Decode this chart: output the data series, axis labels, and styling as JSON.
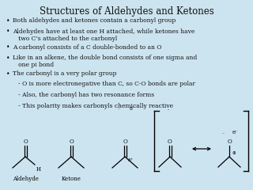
{
  "title": "Structures of Aldehydes and Ketones",
  "title_fontsize": 8.5,
  "background_color": "#cce4ef",
  "text_color": "#111111",
  "bullet_points": [
    "Both aldehydes and ketones contain a carbonyl group",
    "Aldehydes have at least one H attached, while ketones have\n   two C’s attached to the carbonyl",
    "A carbonyl consists of a C double-bonded to an O",
    "Like in an alkene, the double bond consists of one sigma and\n   one pi bond",
    "The carbonyl is a very polar group"
  ],
  "sub_points": [
    "   - O is more electronegative than C, so C-O bonds are polar",
    "   - Also, the carbonyl has two resonance forms",
    "   - This polarity makes carbonyls chemically reactive"
  ],
  "label_aldehyde": "Aldehyde",
  "label_ketone": "Ketone",
  "body_fontsize": 5.5,
  "sub_fontsize": 5.5,
  "label_fontsize": 5.0,
  "struct_fontsize": 5.0
}
